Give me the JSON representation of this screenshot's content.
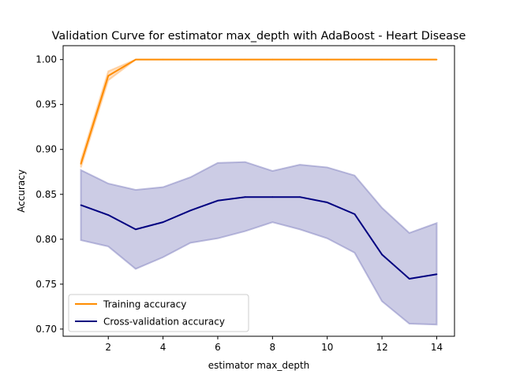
{
  "chart_data": {
    "type": "line",
    "title": "Validation Curve for estimator max_depth with AdaBoost - Heart Disease",
    "xlabel": "estimator max_depth",
    "ylabel": "Accuracy",
    "xlim": [
      0.35,
      14.65
    ],
    "ylim": [
      0.692,
      1.0155
    ],
    "xticks": [
      2,
      4,
      6,
      8,
      10,
      12,
      14
    ],
    "xtick_labels": [
      "2",
      "4",
      "6",
      "8",
      "10",
      "12",
      "14"
    ],
    "yticks": [
      0.7,
      0.75,
      0.8,
      0.85,
      0.9,
      0.95,
      1.0
    ],
    "ytick_labels": [
      "0.70",
      "0.75",
      "0.80",
      "0.85",
      "0.90",
      "0.95",
      "1.00"
    ],
    "legend_position": "lower-left",
    "x": [
      1,
      2,
      3,
      4,
      5,
      6,
      7,
      8,
      9,
      10,
      11,
      12,
      13,
      14
    ],
    "series": [
      {
        "name": "Training accuracy",
        "color": "#ff8c00",
        "values": [
          0.884,
          0.982,
          1.0,
          1.0,
          1.0,
          1.0,
          1.0,
          1.0,
          1.0,
          1.0,
          1.0,
          1.0,
          1.0,
          1.0
        ],
        "band_upper": [
          0.888,
          0.987,
          1.0,
          1.0,
          1.0,
          1.0,
          1.0,
          1.0,
          1.0,
          1.0,
          1.0,
          1.0,
          1.0,
          1.0
        ],
        "band_lower": [
          0.88,
          0.977,
          1.0,
          1.0,
          1.0,
          1.0,
          1.0,
          1.0,
          1.0,
          1.0,
          1.0,
          1.0,
          1.0,
          1.0
        ],
        "band_color": "#ffb366"
      },
      {
        "name": "Cross-validation accuracy",
        "color": "#000080",
        "values": [
          0.838,
          0.827,
          0.811,
          0.819,
          0.832,
          0.843,
          0.847,
          0.847,
          0.847,
          0.841,
          0.828,
          0.783,
          0.756,
          0.761
        ],
        "band_upper": [
          0.877,
          0.862,
          0.855,
          0.858,
          0.869,
          0.885,
          0.886,
          0.876,
          0.883,
          0.88,
          0.871,
          0.835,
          0.807,
          0.818
        ],
        "band_lower": [
          0.799,
          0.792,
          0.767,
          0.78,
          0.796,
          0.801,
          0.809,
          0.819,
          0.811,
          0.801,
          0.785,
          0.731,
          0.706,
          0.705
        ],
        "band_color": "#7f7fbf"
      }
    ]
  }
}
